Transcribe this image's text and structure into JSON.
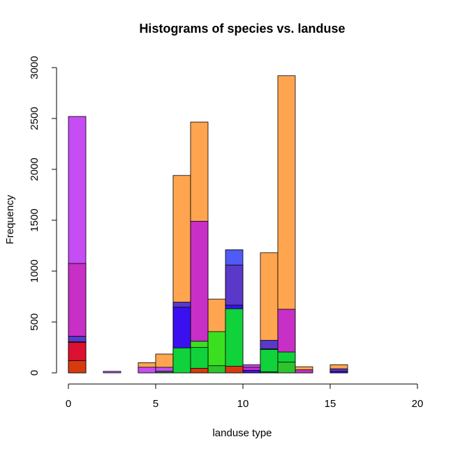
{
  "chart_data": {
    "type": "bar",
    "title": "Histograms of species vs. landuse",
    "xlabel": "landuse type",
    "ylabel": "Frequency",
    "xlim": [
      0,
      20
    ],
    "ylim": [
      0,
      3000
    ],
    "x_ticks": [
      "0",
      "5",
      "10",
      "15",
      "20"
    ],
    "y_ticks": [
      "0",
      "500",
      "1000",
      "1500",
      "2000",
      "2500",
      "3000"
    ],
    "bin_width": 1,
    "grid": false,
    "legend": "none",
    "series": [
      {
        "color": "#FFA54F",
        "bins": [
          {
            "x0": 4,
            "x1": 5,
            "value": 100
          },
          {
            "x0": 5,
            "x1": 6,
            "value": 185
          },
          {
            "x0": 6,
            "x1": 7,
            "value": 1940
          },
          {
            "x0": 7,
            "x1": 8,
            "value": 2465
          },
          {
            "x0": 8,
            "x1": 9,
            "value": 725
          },
          {
            "x0": 11,
            "x1": 12,
            "value": 1180
          },
          {
            "x0": 12,
            "x1": 13,
            "value": 2920
          },
          {
            "x0": 13,
            "x1": 14,
            "value": 60
          },
          {
            "x0": 15,
            "x1": 16,
            "value": 80
          }
        ]
      },
      {
        "color": "#C64CF3",
        "bins": [
          {
            "x0": 0,
            "x1": 1,
            "value": 2520
          },
          {
            "x0": 2,
            "x1": 3,
            "value": 15
          },
          {
            "x0": 4,
            "x1": 5,
            "value": 55
          },
          {
            "x0": 5,
            "x1": 6,
            "value": 55
          },
          {
            "x0": 10,
            "x1": 11,
            "value": 80
          }
        ]
      },
      {
        "color": "#C72FC7",
        "bins": [
          {
            "x0": 0,
            "x1": 1,
            "value": 1075
          },
          {
            "x0": 7,
            "x1": 8,
            "value": 1490
          },
          {
            "x0": 10,
            "x1": 11,
            "value": 55
          },
          {
            "x0": 12,
            "x1": 13,
            "value": 625
          },
          {
            "x0": 13,
            "x1": 14,
            "value": 30
          }
        ]
      },
      {
        "color": "#4E5BF5",
        "bins": [
          {
            "x0": 9,
            "x1": 10,
            "value": 1210
          }
        ]
      },
      {
        "color": "#5A38C8",
        "bins": [
          {
            "x0": 0,
            "x1": 1,
            "value": 360
          },
          {
            "x0": 6,
            "x1": 7,
            "value": 695
          },
          {
            "x0": 9,
            "x1": 10,
            "value": 1060
          },
          {
            "x0": 11,
            "x1": 12,
            "value": 320
          },
          {
            "x0": 15,
            "x1": 16,
            "value": 40
          }
        ]
      },
      {
        "color": "#3A10F0",
        "bins": [
          {
            "x0": 0,
            "x1": 1,
            "value": 305
          },
          {
            "x0": 6,
            "x1": 7,
            "value": 645
          },
          {
            "x0": 9,
            "x1": 10,
            "value": 665
          },
          {
            "x0": 10,
            "x1": 11,
            "value": 25
          },
          {
            "x0": 11,
            "x1": 12,
            "value": 235
          },
          {
            "x0": 15,
            "x1": 16,
            "value": 15
          }
        ]
      },
      {
        "color": "#DC1030",
        "bins": [
          {
            "x0": 0,
            "x1": 1,
            "value": 300
          }
        ]
      },
      {
        "color": "#3AE01F",
        "bins": [
          {
            "x0": 7,
            "x1": 8,
            "value": 310
          },
          {
            "x0": 8,
            "x1": 9,
            "value": 405
          }
        ]
      },
      {
        "color": "#10D23A",
        "bins": [
          {
            "x0": 6,
            "x1": 7,
            "value": 245
          },
          {
            "x0": 7,
            "x1": 8,
            "value": 250
          },
          {
            "x0": 9,
            "x1": 10,
            "value": 630
          },
          {
            "x0": 11,
            "x1": 12,
            "value": 230
          },
          {
            "x0": 12,
            "x1": 13,
            "value": 205
          }
        ]
      },
      {
        "color": "#2EC42E",
        "bins": [
          {
            "x0": 8,
            "x1": 9,
            "value": 70
          },
          {
            "x0": 12,
            "x1": 13,
            "value": 105
          }
        ]
      },
      {
        "color": "#D83A10",
        "bins": [
          {
            "x0": 0,
            "x1": 1,
            "value": 120
          },
          {
            "x0": 7,
            "x1": 8,
            "value": 45
          },
          {
            "x0": 9,
            "x1": 10,
            "value": 65
          }
        ]
      },
      {
        "color": "#1C7A3A",
        "bins": [
          {
            "x0": 5,
            "x1": 6,
            "value": 15
          },
          {
            "x0": 11,
            "x1": 12,
            "value": 10
          }
        ]
      }
    ]
  }
}
